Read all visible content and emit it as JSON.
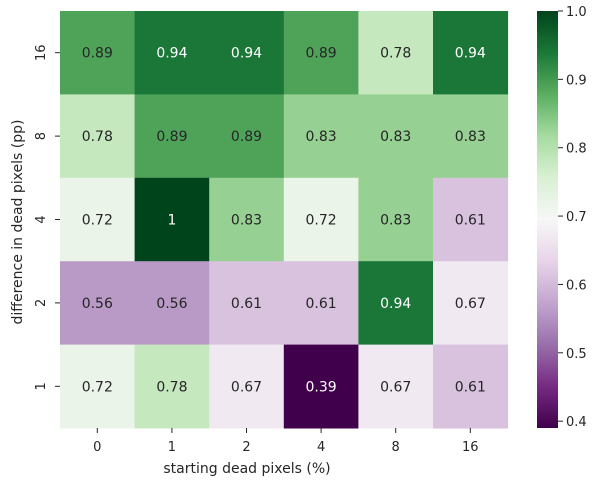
{
  "chart_data": {
    "type": "heatmap",
    "title": "",
    "xlabel": "starting dead pixels (%)",
    "ylabel": "difference in dead pixels (pp)",
    "x_categories": [
      "0",
      "1",
      "2",
      "4",
      "8",
      "16"
    ],
    "y_categories": [
      "16",
      "8",
      "4",
      "2",
      "1"
    ],
    "values": [
      [
        0.89,
        0.94,
        0.94,
        0.89,
        0.78,
        0.94
      ],
      [
        0.78,
        0.89,
        0.89,
        0.83,
        0.83,
        0.83
      ],
      [
        0.72,
        1.0,
        0.83,
        0.72,
        0.83,
        0.61
      ],
      [
        0.56,
        0.56,
        0.61,
        0.61,
        0.94,
        0.67
      ],
      [
        0.72,
        0.78,
        0.67,
        0.39,
        0.67,
        0.61
      ]
    ],
    "cell_labels": [
      [
        "0.89",
        "0.94",
        "0.94",
        "0.89",
        "0.78",
        "0.94"
      ],
      [
        "0.78",
        "0.89",
        "0.89",
        "0.83",
        "0.83",
        "0.83"
      ],
      [
        "0.72",
        "1",
        "0.83",
        "0.72",
        "0.83",
        "0.61"
      ],
      [
        "0.56",
        "0.56",
        "0.61",
        "0.61",
        "0.94",
        "0.67"
      ],
      [
        "0.72",
        "0.78",
        "0.67",
        "0.39",
        "0.67",
        "0.61"
      ]
    ],
    "colormap": "PRGn",
    "vmin": 0.39,
    "vmax": 1.0,
    "colorbar": {
      "ticks": [
        0.4,
        0.5,
        0.6,
        0.7,
        0.8,
        0.9,
        1.0
      ],
      "tick_labels": [
        "0.4",
        "0.5",
        "0.6",
        "0.7",
        "0.8",
        "0.9",
        "1.0"
      ],
      "placement": "right"
    },
    "grid": false
  }
}
